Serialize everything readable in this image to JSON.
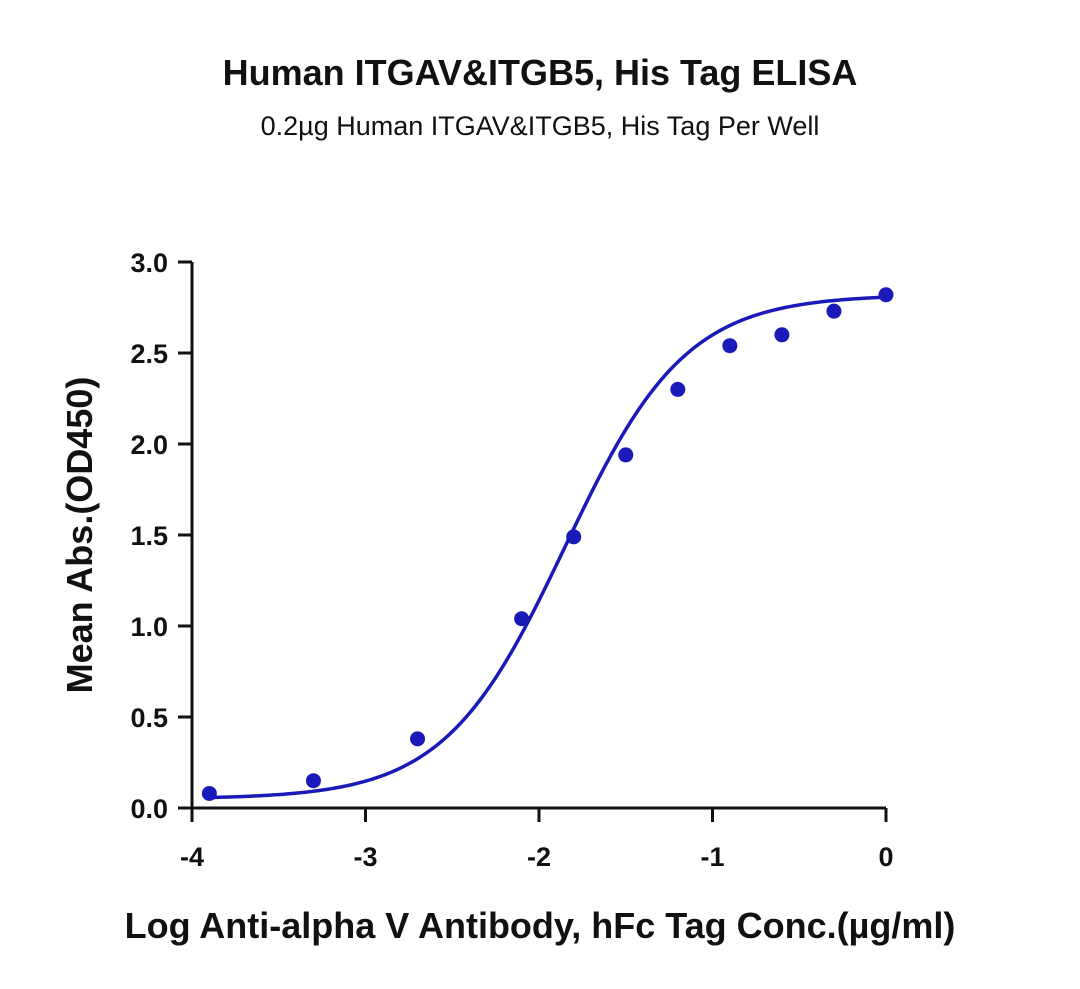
{
  "chart_data": {
    "type": "scatter",
    "title": "Human ITGAV&ITGB5, His Tag ELISA",
    "subtitle": "0.2µg Human ITGAV&ITGB5, His Tag Per Well",
    "xlabel": "Log Anti-alpha V Antibody, hFc Tag Conc.(µg/ml)",
    "ylabel": "Mean Abs.(OD450)",
    "xlim": [
      -4,
      0
    ],
    "ylim": [
      0,
      3.0
    ],
    "xticks": [
      -4,
      -3,
      -2,
      -1,
      0
    ],
    "xtick_labels": [
      "-4",
      "-3",
      "-2",
      "-1",
      "0"
    ],
    "yticks": [
      0,
      0.5,
      1.0,
      1.5,
      2.0,
      2.5,
      3.0
    ],
    "ytick_labels": [
      "0.0",
      "0.5",
      "1.0",
      "1.5",
      "2.0",
      "2.5",
      "3.0"
    ],
    "grid": false,
    "color": "#1a1ab8",
    "series": [
      {
        "x": [
          -3.9,
          -3.3,
          -2.7,
          -2.1,
          -1.8,
          -1.5,
          -1.2,
          -0.9,
          -0.6,
          -0.3,
          0.0
        ],
        "y": [
          0.08,
          0.15,
          0.38,
          1.04,
          1.49,
          1.94,
          2.3,
          2.54,
          2.6,
          2.73,
          2.82
        ]
      }
    ],
    "fit_curve": {
      "model": "4PL",
      "bottom": 0.05,
      "top": 2.82,
      "log_ec50": -1.85,
      "hill": 1.25
    }
  }
}
